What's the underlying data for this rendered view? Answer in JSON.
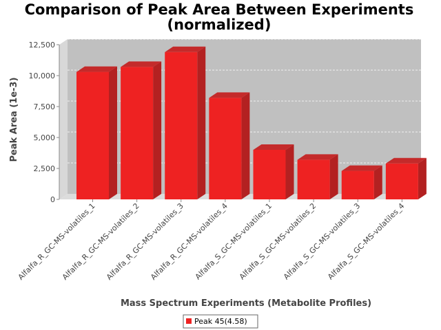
{
  "chart_data": {
    "type": "bar",
    "title": "Comparison of Peak Area Between Experiments",
    "subtitle": "(normalized)",
    "xlabel": "Mass Spectrum Experiments (Metabolite Profiles)",
    "ylabel": "Peak Area (1e-3)",
    "ylim": [
      0,
      12500
    ],
    "yticks": [
      "0",
      "2,500",
      "5,000",
      "7,500",
      "10,000",
      "12,500"
    ],
    "grid": true,
    "legend_position": "bottom-center",
    "categories": [
      "Alfalfa_R_GC-MS-volatiles_1",
      "Alfalfa_R_GC-MS-volatiles_2",
      "Alfalfa_R_GC-MS-volatiles_3",
      "Alfalfa_R_GC-MS-volatiles_4",
      "Alfalfa_S_GC-MS-volatiles_1",
      "Alfalfa_S_GC-MS-volatiles_2",
      "Alfalfa_S_GC-MS-volatiles_3",
      "Alfalfa_S_GC-MS-volatiles_4"
    ],
    "series": [
      {
        "name": "Peak 45(4.58)",
        "color": "#ee2222",
        "values": [
          10300,
          10700,
          11900,
          8200,
          4000,
          3200,
          2300,
          2900
        ]
      }
    ]
  }
}
